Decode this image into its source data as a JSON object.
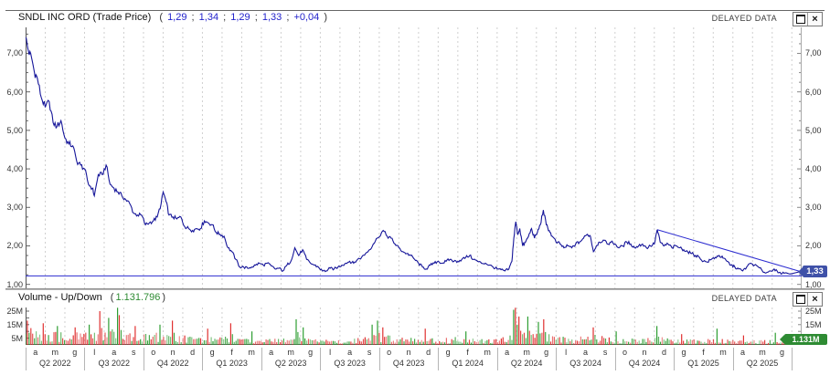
{
  "main_panel": {
    "title": "SNDL INC ORD (Trade Price)",
    "paren_open": "(",
    "paren_close": ")",
    "quote_separator": ";",
    "quote_values": [
      "1,29",
      "1,34",
      "1,29",
      "1,33",
      "+0,04"
    ],
    "delayed_label": "DELAYED DATA",
    "price_tag": "1,33",
    "y_ticks": [
      {
        "label": "7,00",
        "v": 7
      },
      {
        "label": "6,00",
        "v": 6
      },
      {
        "label": "5,00",
        "v": 5
      },
      {
        "label": "4,00",
        "v": 4
      },
      {
        "label": "3,00",
        "v": 3
      },
      {
        "label": "2,00",
        "v": 2
      },
      {
        "label": "1,00",
        "v": 1
      }
    ]
  },
  "volume_panel": {
    "title": "Volume - Up/Down",
    "paren_open": "(",
    "paren_close": ")",
    "value": "1.131.796",
    "delayed_label": "DELAYED DATA",
    "volume_tag": "1.131M",
    "y_ticks": [
      {
        "label": "25M",
        "v": 25
      },
      {
        "label": "15M",
        "v": 15
      },
      {
        "label": "5M",
        "v": 5
      }
    ]
  },
  "icons": {
    "close_glyph": "×"
  },
  "x_axis": {
    "months": [
      "a",
      "m",
      "g",
      "l",
      "a",
      "s",
      "o",
      "n",
      "d",
      "g",
      "f",
      "m",
      "a",
      "m",
      "g",
      "l",
      "a",
      "s",
      "o",
      "n",
      "d",
      "g",
      "f",
      "m",
      "a",
      "m",
      "g",
      "l",
      "a",
      "s",
      "o",
      "n",
      "d",
      "g",
      "f",
      "m",
      "a",
      "m",
      "g"
    ],
    "quarters": [
      "Q2 2022",
      "Q3 2022",
      "Q4 2022",
      "Q1 2023",
      "Q2 2023",
      "Q3 2023",
      "Q4 2023",
      "Q1 2024",
      "Q2 2024",
      "Q3 2024",
      "Q4 2024",
      "Q1 2025",
      "Q2 2025"
    ]
  },
  "colors": {
    "price_line": "#151599",
    "support_line": "#2b2bd0",
    "trendline": "#2b2bd0",
    "up": "#2f9e33",
    "down": "#e03030",
    "tag_price_bg": "#3f51a8",
    "tag_volume_bg": "#2e8b33",
    "grid": "#cfcfcf",
    "quote_value": "#2222cc",
    "volume_value": "#2e8b33"
  },
  "chart_data": {
    "type": "line",
    "title": "SNDL INC ORD (Trade Price)",
    "x_unit": "months since Apr 2022",
    "months_total": 39.5,
    "grid": "monthly dashed vertical",
    "price": {
      "ylim": [
        0.874,
        7.675
      ],
      "last": 1.33,
      "ohlc_today": {
        "open": 1.29,
        "high": 1.34,
        "low": 1.29,
        "close": 1.33,
        "change": 0.04
      },
      "support_level": 1.22,
      "trendline": [
        [
          32.15,
          2.42
        ],
        [
          39.4,
          1.34
        ]
      ],
      "points": [
        [
          0.0,
          7.42
        ],
        [
          0.15,
          7.05
        ],
        [
          0.3,
          6.9
        ],
        [
          0.45,
          6.5
        ],
        [
          0.6,
          6.35
        ],
        [
          0.8,
          5.85
        ],
        [
          1.0,
          5.6
        ],
        [
          1.2,
          5.75
        ],
        [
          1.4,
          5.2
        ],
        [
          1.6,
          5.1
        ],
        [
          1.8,
          5.25
        ],
        [
          2.0,
          4.8
        ],
        [
          2.2,
          4.65
        ],
        [
          2.4,
          4.6
        ],
        [
          2.6,
          4.2
        ],
        [
          2.8,
          4.1
        ],
        [
          3.0,
          4.0
        ],
        [
          3.2,
          3.6
        ],
        [
          3.4,
          3.5
        ],
        [
          3.5,
          3.3
        ],
        [
          3.7,
          3.85
        ],
        [
          3.9,
          3.85
        ],
        [
          4.1,
          4.1
        ],
        [
          4.3,
          3.6
        ],
        [
          4.5,
          3.5
        ],
        [
          4.7,
          3.4
        ],
        [
          4.9,
          3.3
        ],
        [
          5.1,
          3.2
        ],
        [
          5.3,
          3.1
        ],
        [
          5.5,
          2.85
        ],
        [
          5.7,
          2.8
        ],
        [
          5.9,
          2.8
        ],
        [
          6.1,
          2.55
        ],
        [
          6.3,
          2.6
        ],
        [
          6.5,
          2.65
        ],
        [
          6.7,
          2.75
        ],
        [
          6.9,
          3.1
        ],
        [
          7.0,
          3.4
        ],
        [
          7.15,
          3.15
        ],
        [
          7.3,
          2.8
        ],
        [
          7.5,
          2.75
        ],
        [
          7.7,
          2.7
        ],
        [
          7.9,
          2.75
        ],
        [
          8.1,
          2.5
        ],
        [
          8.3,
          2.45
        ],
        [
          8.5,
          2.4
        ],
        [
          8.7,
          2.45
        ],
        [
          8.9,
          2.45
        ],
        [
          9.1,
          2.65
        ],
        [
          9.3,
          2.6
        ],
        [
          9.5,
          2.55
        ],
        [
          9.7,
          2.35
        ],
        [
          9.9,
          2.3
        ],
        [
          10.1,
          2.25
        ],
        [
          10.3,
          1.95
        ],
        [
          10.5,
          1.85
        ],
        [
          10.7,
          1.65
        ],
        [
          10.9,
          1.45
        ],
        [
          11.1,
          1.45
        ],
        [
          11.3,
          1.42
        ],
        [
          11.5,
          1.45
        ],
        [
          11.7,
          1.5
        ],
        [
          11.9,
          1.55
        ],
        [
          12.1,
          1.5
        ],
        [
          12.3,
          1.55
        ],
        [
          12.5,
          1.48
        ],
        [
          12.7,
          1.4
        ],
        [
          12.9,
          1.42
        ],
        [
          13.1,
          1.35
        ],
        [
          13.3,
          1.5
        ],
        [
          13.5,
          1.6
        ],
        [
          13.7,
          1.95
        ],
        [
          13.9,
          1.75
        ],
        [
          14.1,
          1.9
        ],
        [
          14.3,
          1.65
        ],
        [
          14.5,
          1.55
        ],
        [
          14.7,
          1.5
        ],
        [
          14.9,
          1.45
        ],
        [
          15.1,
          1.35
        ],
        [
          15.3,
          1.35
        ],
        [
          15.5,
          1.42
        ],
        [
          15.7,
          1.4
        ],
        [
          15.9,
          1.45
        ],
        [
          16.1,
          1.5
        ],
        [
          16.3,
          1.55
        ],
        [
          16.5,
          1.6
        ],
        [
          16.7,
          1.55
        ],
        [
          16.9,
          1.65
        ],
        [
          17.1,
          1.7
        ],
        [
          17.3,
          1.8
        ],
        [
          17.5,
          1.9
        ],
        [
          17.7,
          2.05
        ],
        [
          17.9,
          2.2
        ],
        [
          18.2,
          2.4
        ],
        [
          18.4,
          2.25
        ],
        [
          18.6,
          2.2
        ],
        [
          18.8,
          2.05
        ],
        [
          19.0,
          1.95
        ],
        [
          19.2,
          1.85
        ],
        [
          19.4,
          1.8
        ],
        [
          19.6,
          1.75
        ],
        [
          19.8,
          1.65
        ],
        [
          20.0,
          1.55
        ],
        [
          20.2,
          1.45
        ],
        [
          20.4,
          1.4
        ],
        [
          20.6,
          1.5
        ],
        [
          20.8,
          1.55
        ],
        [
          21.0,
          1.6
        ],
        [
          21.2,
          1.55
        ],
        [
          21.4,
          1.6
        ],
        [
          21.6,
          1.65
        ],
        [
          21.8,
          1.6
        ],
        [
          22.0,
          1.6
        ],
        [
          22.2,
          1.65
        ],
        [
          22.4,
          1.7
        ],
        [
          22.6,
          1.75
        ],
        [
          22.8,
          1.65
        ],
        [
          23.0,
          1.6
        ],
        [
          23.2,
          1.55
        ],
        [
          23.4,
          1.55
        ],
        [
          23.6,
          1.5
        ],
        [
          23.8,
          1.45
        ],
        [
          24.0,
          1.4
        ],
        [
          24.2,
          1.38
        ],
        [
          24.4,
          1.35
        ],
        [
          24.6,
          1.4
        ],
        [
          24.75,
          1.6
        ],
        [
          24.85,
          2.2
        ],
        [
          24.95,
          2.63
        ],
        [
          25.05,
          2.3
        ],
        [
          25.15,
          2.45
        ],
        [
          25.3,
          2.0
        ],
        [
          25.45,
          2.1
        ],
        [
          25.6,
          2.25
        ],
        [
          25.75,
          2.45
        ],
        [
          25.9,
          2.2
        ],
        [
          26.05,
          2.35
        ],
        [
          26.2,
          2.55
        ],
        [
          26.35,
          2.93
        ],
        [
          26.5,
          2.55
        ],
        [
          26.65,
          2.4
        ],
        [
          26.8,
          2.25
        ],
        [
          27.0,
          2.1
        ],
        [
          27.2,
          2.05
        ],
        [
          27.4,
          1.95
        ],
        [
          27.6,
          2.0
        ],
        [
          27.8,
          1.95
        ],
        [
          28.0,
          2.05
        ],
        [
          28.2,
          2.1
        ],
        [
          28.4,
          2.2
        ],
        [
          28.6,
          2.3
        ],
        [
          28.75,
          2.25
        ],
        [
          28.9,
          1.85
        ],
        [
          29.05,
          2.0
        ],
        [
          29.2,
          2.1
        ],
        [
          29.4,
          2.15
        ],
        [
          29.6,
          2.05
        ],
        [
          29.8,
          2.1
        ],
        [
          30.0,
          2.05
        ],
        [
          30.2,
          1.95
        ],
        [
          30.4,
          2.0
        ],
        [
          30.6,
          2.1
        ],
        [
          30.8,
          2.05
        ],
        [
          31.0,
          1.95
        ],
        [
          31.2,
          2.0
        ],
        [
          31.4,
          2.05
        ],
        [
          31.6,
          1.95
        ],
        [
          31.8,
          2.0
        ],
        [
          32.0,
          2.05
        ],
        [
          32.15,
          2.42
        ],
        [
          32.3,
          2.1
        ],
        [
          32.5,
          2.0
        ],
        [
          32.7,
          2.05
        ],
        [
          32.9,
          1.95
        ],
        [
          33.1,
          2.0
        ],
        [
          33.3,
          1.95
        ],
        [
          33.5,
          1.9
        ],
        [
          33.7,
          1.85
        ],
        [
          33.9,
          1.8
        ],
        [
          34.1,
          1.75
        ],
        [
          34.3,
          1.7
        ],
        [
          34.5,
          1.6
        ],
        [
          34.7,
          1.58
        ],
        [
          34.9,
          1.65
        ],
        [
          35.1,
          1.7
        ],
        [
          35.3,
          1.75
        ],
        [
          35.5,
          1.68
        ],
        [
          35.7,
          1.6
        ],
        [
          35.9,
          1.5
        ],
        [
          36.1,
          1.45
        ],
        [
          36.3,
          1.4
        ],
        [
          36.5,
          1.35
        ],
        [
          36.7,
          1.45
        ],
        [
          36.9,
          1.55
        ],
        [
          37.1,
          1.5
        ],
        [
          37.3,
          1.45
        ],
        [
          37.5,
          1.35
        ],
        [
          37.7,
          1.3
        ],
        [
          37.9,
          1.35
        ],
        [
          38.1,
          1.4
        ],
        [
          38.3,
          1.3
        ],
        [
          38.5,
          1.28
        ],
        [
          38.7,
          1.3
        ],
        [
          38.9,
          1.27
        ],
        [
          39.1,
          1.29
        ],
        [
          39.4,
          1.33
        ]
      ]
    },
    "volume": {
      "ylim_millions": [
        0,
        27.7
      ],
      "today_total": 1131796,
      "bar_step_months": 0.09,
      "envelope": [
        [
          0,
          12
        ],
        [
          0.5,
          10
        ],
        [
          1,
          8.5
        ],
        [
          1.5,
          8
        ],
        [
          2,
          8
        ],
        [
          2.5,
          8.5
        ],
        [
          3,
          8
        ],
        [
          3.5,
          9
        ],
        [
          4,
          9
        ],
        [
          4.5,
          10
        ],
        [
          5,
          8
        ],
        [
          5.5,
          7
        ],
        [
          6,
          7
        ],
        [
          6.5,
          7.5
        ],
        [
          7,
          8
        ],
        [
          7.5,
          7
        ],
        [
          8,
          6
        ],
        [
          8.5,
          5.5
        ],
        [
          9,
          5
        ],
        [
          9.5,
          5
        ],
        [
          10,
          6
        ],
        [
          10.5,
          5.5
        ],
        [
          11,
          4
        ],
        [
          11.5,
          4
        ],
        [
          12,
          4
        ],
        [
          12.5,
          4
        ],
        [
          13,
          4.5
        ],
        [
          13.5,
          5.5
        ],
        [
          14,
          5
        ],
        [
          14.5,
          4
        ],
        [
          15,
          3.5
        ],
        [
          15.5,
          3.5
        ],
        [
          16,
          3.5
        ],
        [
          16.5,
          4
        ],
        [
          17,
          4.5
        ],
        [
          17.5,
          6.5
        ],
        [
          18,
          7
        ],
        [
          18.5,
          6
        ],
        [
          19,
          5
        ],
        [
          19.5,
          4.5
        ],
        [
          20,
          4
        ],
        [
          20.5,
          4
        ],
        [
          21,
          4.5
        ],
        [
          21.5,
          4.5
        ],
        [
          22,
          5
        ],
        [
          22.5,
          4.5
        ],
        [
          23,
          4
        ],
        [
          23.5,
          4
        ],
        [
          24,
          4.5
        ],
        [
          24.5,
          6
        ],
        [
          24.8,
          11
        ],
        [
          25,
          12
        ],
        [
          25.3,
          8
        ],
        [
          25.6,
          8
        ],
        [
          26,
          7.5
        ],
        [
          26.5,
          8
        ],
        [
          27,
          6
        ],
        [
          27.5,
          5
        ],
        [
          28,
          5
        ],
        [
          28.5,
          6
        ],
        [
          29,
          6.5
        ],
        [
          29.5,
          5
        ],
        [
          30,
          4.5
        ],
        [
          30.5,
          4
        ],
        [
          31,
          4
        ],
        [
          31.5,
          4
        ],
        [
          32,
          5.5
        ],
        [
          32.5,
          5
        ],
        [
          33,
          4
        ],
        [
          33.5,
          4
        ],
        [
          34,
          3.5
        ],
        [
          34.5,
          3.5
        ],
        [
          35,
          4
        ],
        [
          35.5,
          4
        ],
        [
          36,
          3.5
        ],
        [
          36.5,
          3
        ],
        [
          37,
          3
        ],
        [
          37.5,
          3
        ],
        [
          38,
          3.5
        ],
        [
          38.5,
          3
        ],
        [
          39,
          2.5
        ],
        [
          39.5,
          1.5
        ]
      ],
      "spikes": [
        [
          0.1,
          18,
          0
        ],
        [
          0.9,
          16,
          0
        ],
        [
          1.6,
          14,
          1
        ],
        [
          2.5,
          13,
          0
        ],
        [
          3.2,
          15,
          1
        ],
        [
          3.75,
          25,
          0
        ],
        [
          4.2,
          20,
          1
        ],
        [
          4.65,
          31,
          1
        ],
        [
          4.8,
          22,
          0
        ],
        [
          5.6,
          14,
          0
        ],
        [
          6.8,
          15,
          1
        ],
        [
          7.5,
          18,
          0
        ],
        [
          9.3,
          12,
          0
        ],
        [
          10.4,
          16,
          0
        ],
        [
          11.5,
          10,
          1
        ],
        [
          13.8,
          19,
          1
        ],
        [
          14.1,
          13,
          1
        ],
        [
          17.6,
          15,
          1
        ],
        [
          17.9,
          18,
          1
        ],
        [
          18.2,
          13,
          0
        ],
        [
          20.3,
          12,
          0
        ],
        [
          22.4,
          10,
          1
        ],
        [
          24.8,
          26,
          1
        ],
        [
          24.95,
          30,
          0
        ],
        [
          25.1,
          21,
          0
        ],
        [
          25.6,
          21,
          1
        ],
        [
          26.1,
          17,
          1
        ],
        [
          26.35,
          19,
          0
        ],
        [
          28.9,
          13,
          0
        ],
        [
          30.1,
          10,
          1
        ],
        [
          32.15,
          14,
          1
        ],
        [
          33.4,
          8,
          0
        ],
        [
          35.2,
          12,
          1
        ],
        [
          36.5,
          7,
          0
        ],
        [
          38.2,
          9,
          1
        ]
      ]
    }
  }
}
